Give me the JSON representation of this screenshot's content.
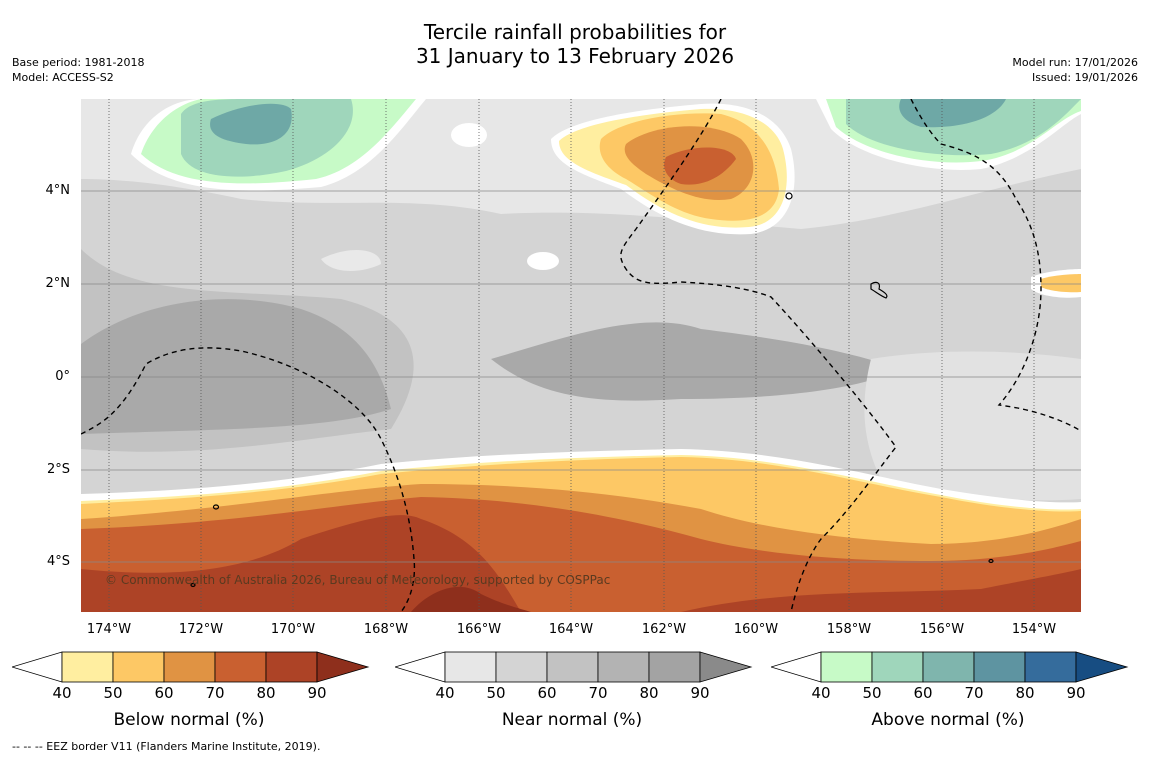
{
  "title": {
    "line1": "Tercile rainfall probabilities for",
    "line2": "31 January to 13 February 2026"
  },
  "meta": {
    "base_period": "Base period: 1981-2018",
    "model": "Model: ACCESS-S2",
    "model_run": "Model run: 17/01/2026",
    "issued": "Issued: 19/01/2026"
  },
  "axes": {
    "lat_labels": [
      "4°N",
      "2°N",
      "0°",
      "2°S",
      "4°S"
    ],
    "lon_labels": [
      "174°W",
      "172°W",
      "170°W",
      "168°W",
      "166°W",
      "164°W",
      "162°W",
      "160°W",
      "158°W",
      "156°W",
      "154°W"
    ]
  },
  "colorbars": [
    {
      "label": "Below normal (%)",
      "ticks": [
        "40",
        "50",
        "60",
        "70",
        "80",
        "90"
      ],
      "colors": [
        "#ffffff",
        "#ffeea0",
        "#fdc865",
        "#e09343",
        "#c96030",
        "#ad4326",
        "#8e2f1c"
      ]
    },
    {
      "label": "Near normal (%)",
      "ticks": [
        "40",
        "50",
        "60",
        "70",
        "80",
        "90"
      ],
      "colors": [
        "#ffffff",
        "#e7e7e7",
        "#d4d4d4",
        "#c2c2c2",
        "#b3b3b3",
        "#a3a3a3",
        "#8a8a8a"
      ]
    },
    {
      "label": "Above normal (%)",
      "ticks": [
        "40",
        "50",
        "60",
        "70",
        "80",
        "90"
      ],
      "colors": [
        "#ffffff",
        "#c7fac7",
        "#9fd6bb",
        "#7fb5ad",
        "#5e94a1",
        "#356c9c",
        "#174d82"
      ]
    }
  ],
  "copyright": "© Commonwealth of Australia 2026, Bureau of Meteorology, supported by COSPPac",
  "footer": "--  --  -- EEZ border V11 (Flanders Marine Institute, 2019)."
}
